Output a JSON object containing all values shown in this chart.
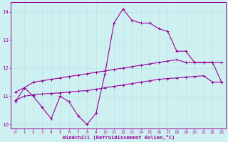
{
  "xlabel": "Windchill (Refroidissement éolien,°C)",
  "bg_color": "#cff0f0",
  "line_color": "#990099",
  "grid_color": "#b8e8e8",
  "x_data": [
    0,
    1,
    2,
    3,
    4,
    5,
    6,
    7,
    8,
    9,
    10,
    11,
    12,
    13,
    14,
    15,
    16,
    17,
    18,
    19,
    20,
    21,
    22,
    23
  ],
  "y_main": [
    10.8,
    11.3,
    11.0,
    10.6,
    10.2,
    11.0,
    10.8,
    10.3,
    10.0,
    10.4,
    11.8,
    13.6,
    14.1,
    13.7,
    13.6,
    13.6,
    13.4,
    13.3,
    12.6,
    12.6,
    12.2,
    12.2,
    12.2,
    11.5
  ],
  "y_upper": [
    11.15,
    11.3,
    11.5,
    11.55,
    11.6,
    11.65,
    11.7,
    11.75,
    11.8,
    11.85,
    11.9,
    11.95,
    12.0,
    12.05,
    12.1,
    12.15,
    12.2,
    12.25,
    12.3,
    12.2,
    12.2,
    12.2,
    12.2,
    12.2
  ],
  "y_lower": [
    10.85,
    11.0,
    11.05,
    11.08,
    11.1,
    11.12,
    11.15,
    11.18,
    11.2,
    11.25,
    11.3,
    11.35,
    11.4,
    11.45,
    11.5,
    11.55,
    11.6,
    11.63,
    11.65,
    11.68,
    11.7,
    11.73,
    11.5,
    11.5
  ],
  "ylim": [
    9.85,
    14.35
  ],
  "yticks": [
    10,
    11,
    12,
    13,
    14
  ],
  "xticks": [
    0,
    1,
    2,
    3,
    4,
    5,
    6,
    7,
    8,
    9,
    10,
    11,
    12,
    13,
    14,
    15,
    16,
    17,
    18,
    19,
    20,
    21,
    22,
    23
  ]
}
